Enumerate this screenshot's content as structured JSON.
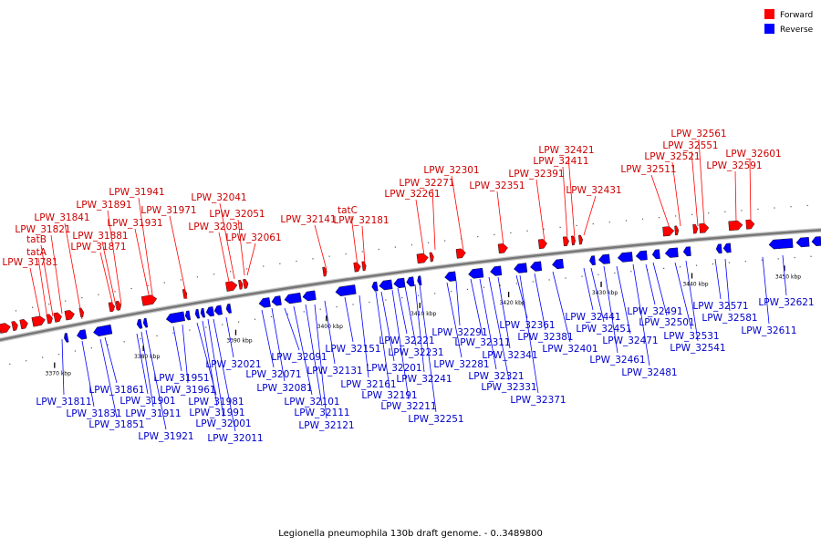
{
  "caption": "Legionella pneumophila 130b draft genome. - 0..3489800",
  "legend": {
    "forward_label": "Forward",
    "reverse_label": "Reverse",
    "forward_color": "#ff0000",
    "reverse_color": "#0000ff"
  },
  "backbone_color": "#777777",
  "ticks": [
    "3370 kbp",
    "3380 kbp",
    "3390 kbp",
    "3400 kbp",
    "3410 kbp",
    "3420 kbp",
    "3430 kbp",
    "3440 kbp",
    "3450 kbp"
  ],
  "forward_genes": [
    "LPW_31781",
    "tatA",
    "tatB",
    "LPW_31821",
    "LPW_31841",
    "LPW_31871",
    "LPW_31881",
    "LPW_31891",
    "LPW_31931",
    "LPW_31941",
    "LPW_31971",
    "LPW_32031",
    "LPW_32041",
    "LPW_32051",
    "LPW_32061",
    "LPW_32141",
    "tatC",
    "LPW_32181",
    "LPW_32261",
    "LPW_32271",
    "LPW_32301",
    "LPW_32351",
    "LPW_32391",
    "LPW_32411",
    "LPW_32421",
    "LPW_32431",
    "LPW_32511",
    "LPW_32521",
    "LPW_32551",
    "LPW_32561",
    "LPW_32591",
    "LPW_32601"
  ],
  "reverse_genes": [
    "LPW_31811",
    "LPW_31831",
    "LPW_31851",
    "LPW_31861",
    "LPW_31901",
    "LPW_31911",
    "LPW_31921",
    "LPW_31951",
    "LPW_31961",
    "LPW_31981",
    "LPW_31991",
    "LPW_32001",
    "LPW_32011",
    "LPW_32021",
    "LPW_32071",
    "LPW_32081",
    "LPW_32091",
    "LPW_32101",
    "LPW_32111",
    "LPW_32121",
    "LPW_32131",
    "LPW_32151",
    "LPW_32161",
    "LPW_32191",
    "LPW_32201",
    "LPW_32211",
    "LPW_32221",
    "LPW_32231",
    "LPW_32241",
    "LPW_32251",
    "LPW_32281",
    "LPW_32291",
    "LPW_32311",
    "LPW_32321",
    "LPW_32331",
    "LPW_32341",
    "LPW_32361",
    "LPW_32371",
    "LPW_32381",
    "LPW_32401",
    "LPW_32441",
    "LPW_32451",
    "LPW_32461",
    "LPW_32471",
    "LPW_32481",
    "LPW_32491",
    "LPW_32501",
    "LPW_32531",
    "LPW_32541",
    "LPW_32571",
    "LPW_32581",
    "LPW_32611",
    "LPW_32621"
  ]
}
